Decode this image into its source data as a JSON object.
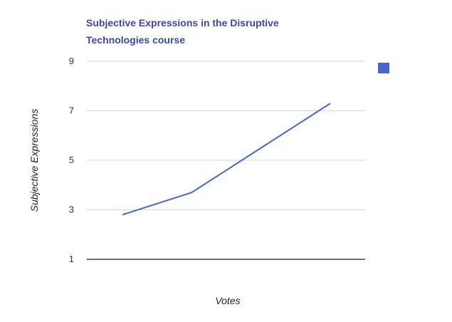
{
  "chart_data": {
    "type": "line",
    "title_lines": [
      "Subjective Expressions in the Disruptive",
      "Technologies course"
    ],
    "xlabel": "Votes",
    "ylabel": "Subjective Expressions",
    "ylim": [
      1,
      9
    ],
    "yticks": [
      "1",
      "3",
      "5",
      "7",
      "9"
    ],
    "grid": true,
    "legend_position": "top-right",
    "series": [
      {
        "color": "#4a66cc",
        "x": [
          1,
          2,
          3,
          4
        ],
        "values": [
          2.8,
          3.7,
          5.5,
          7.3
        ]
      }
    ]
  }
}
